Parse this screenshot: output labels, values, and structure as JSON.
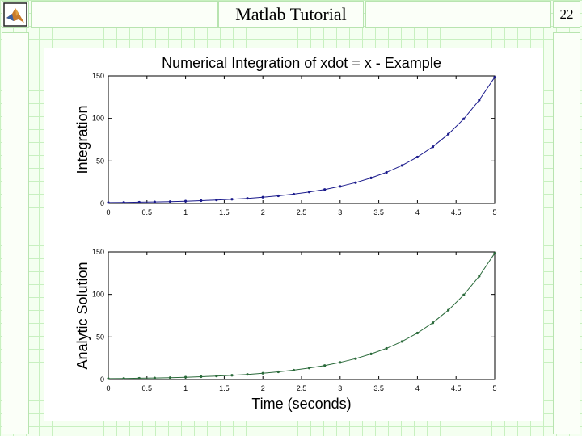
{
  "slide": {
    "title": "Matlab Tutorial",
    "page_number": "22"
  },
  "logo": {
    "icon": "matlab-logo-icon"
  },
  "chart_data": [
    {
      "type": "line",
      "title": "Numerical Integration of xdot = x - Example",
      "ylabel": "Integration",
      "xlabel": "",
      "xlim": [
        0,
        5
      ],
      "ylim": [
        0,
        150
      ],
      "xticks": [
        "0",
        "0.5",
        "1",
        "1.5",
        "2",
        "2.5",
        "3",
        "3.5",
        "4",
        "4.5",
        "5"
      ],
      "yticks": [
        "0",
        "50",
        "100",
        "150"
      ],
      "grid": false,
      "color": "#1a1a8c",
      "marker": "dot",
      "x": [
        0,
        0.2,
        0.4,
        0.6,
        0.8,
        1.0,
        1.2,
        1.4,
        1.6,
        1.8,
        2.0,
        2.2,
        2.4,
        2.6,
        2.8,
        3.0,
        3.2,
        3.4,
        3.6,
        3.8,
        4.0,
        4.2,
        4.4,
        4.6,
        4.8,
        5.0
      ],
      "y": [
        1,
        1.2,
        1.5,
        1.8,
        2.2,
        2.7,
        3.3,
        4.1,
        5.0,
        6.0,
        7.4,
        9.0,
        11.0,
        13.5,
        16.4,
        20.1,
        24.5,
        30.0,
        36.6,
        44.7,
        54.6,
        66.7,
        81.5,
        99.5,
        121.5,
        148.4
      ]
    },
    {
      "type": "line",
      "title": "",
      "ylabel": "Analytic Solution",
      "xlabel": "Time (seconds)",
      "xlim": [
        0,
        5
      ],
      "ylim": [
        0,
        150
      ],
      "xticks": [
        "0",
        "0.5",
        "1",
        "1.5",
        "2",
        "2.5",
        "3",
        "3.5",
        "4",
        "4.5",
        "5"
      ],
      "yticks": [
        "0",
        "50",
        "100",
        "150"
      ],
      "grid": false,
      "color": "#2a6a3a",
      "marker": "dot",
      "x": [
        0,
        0.2,
        0.4,
        0.6,
        0.8,
        1.0,
        1.2,
        1.4,
        1.6,
        1.8,
        2.0,
        2.2,
        2.4,
        2.6,
        2.8,
        3.0,
        3.2,
        3.4,
        3.6,
        3.8,
        4.0,
        4.2,
        4.4,
        4.6,
        4.8,
        5.0
      ],
      "y": [
        1,
        1.2,
        1.5,
        1.8,
        2.2,
        2.7,
        3.3,
        4.1,
        5.0,
        6.0,
        7.4,
        9.0,
        11.0,
        13.5,
        16.4,
        20.1,
        24.5,
        30.0,
        36.6,
        44.7,
        54.6,
        66.7,
        81.5,
        99.5,
        121.5,
        148.4
      ]
    }
  ]
}
